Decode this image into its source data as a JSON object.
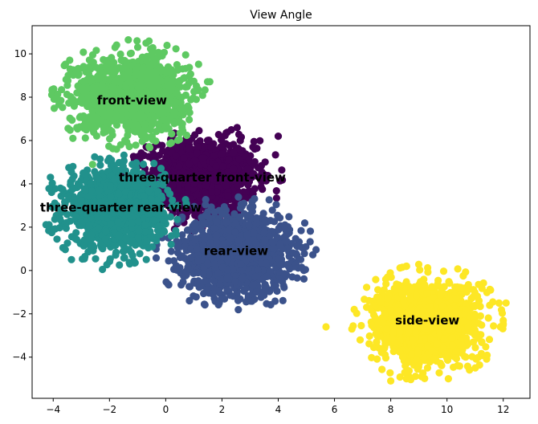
{
  "chart_data": {
    "type": "scatter",
    "title": "View Angle",
    "xlabel": "",
    "ylabel": "",
    "xlim": [
      -4.75,
      12.95
    ],
    "ylim": [
      -5.9,
      11.3
    ],
    "xticks": [
      -4,
      -2,
      0,
      2,
      4,
      6,
      8,
      10,
      12
    ],
    "yticks": [
      -4,
      -2,
      0,
      2,
      4,
      6,
      8,
      10
    ],
    "grid": false,
    "legend": "none",
    "clusters": [
      {
        "label": "three-quarter front-view",
        "color": "#440154",
        "center": [
          1.3,
          4.3
        ],
        "spread": [
          0.95,
          0.85
        ],
        "n": 1300,
        "outliers": [
          [
            4.0,
            6.2
          ],
          [
            3.1,
            5.7
          ],
          [
            0.3,
            6.0
          ],
          [
            -0.3,
            3.4
          ],
          [
            -1.3,
            3.5
          ],
          [
            2.6,
            3.1
          ]
        ]
      },
      {
        "label": "rear-view",
        "color": "#3b528b",
        "center": [
          2.5,
          0.8
        ],
        "spread": [
          0.95,
          0.9
        ],
        "n": 1400,
        "outliers": [
          [
            4.8,
            0.5
          ],
          [
            4.5,
            -0.3
          ],
          [
            -0.6,
            1.6
          ],
          [
            0.1,
            1.5
          ],
          [
            3.0,
            2.9
          ],
          [
            2.0,
            -1.3
          ]
        ]
      },
      {
        "label": "three-quarter rear-view",
        "color": "#21918c",
        "center": [
          -1.8,
          2.8
        ],
        "spread": [
          0.85,
          0.85
        ],
        "n": 1300,
        "outliers": [
          [
            -3.35,
            0.5
          ],
          [
            -2.25,
            0.05
          ],
          [
            -4.1,
            4.3
          ],
          [
            -4.0,
            1.9
          ],
          [
            -3.3,
            4.8
          ],
          [
            0.2,
            1.6
          ]
        ]
      },
      {
        "label": "front-view",
        "color": "#5ec962",
        "center": [
          -1.2,
          8.1
        ],
        "spread": [
          0.95,
          0.85
        ],
        "n": 1400,
        "outliers": [
          [
            -3.4,
            9.3
          ],
          [
            -0.7,
            10.5
          ],
          [
            -1.8,
            10.3
          ],
          [
            -2.6,
            4.9
          ],
          [
            -3.3,
            6.1
          ],
          [
            0.2,
            5.9
          ]
        ]
      },
      {
        "label": "side-view",
        "color": "#fde725",
        "center": [
          9.3,
          -2.4
        ],
        "spread": [
          0.9,
          0.9
        ],
        "n": 1500,
        "outliers": [
          [
            5.7,
            -2.6
          ],
          [
            6.7,
            -1.8
          ],
          [
            8.0,
            -5.1
          ],
          [
            9.1,
            -4.9
          ],
          [
            12.1,
            -1.5
          ],
          [
            11.9,
            -2.6
          ]
        ]
      }
    ],
    "annotations": [
      {
        "text": "front-view",
        "x": -1.2,
        "y": 7.85
      },
      {
        "text": "three-quarter front-view",
        "x": 1.3,
        "y": 4.3
      },
      {
        "text": "three-quarter rear-view",
        "x": -1.6,
        "y": 2.9
      },
      {
        "text": "rear-view",
        "x": 2.5,
        "y": 0.9
      },
      {
        "text": "side-view",
        "x": 9.3,
        "y": -2.3
      }
    ]
  }
}
